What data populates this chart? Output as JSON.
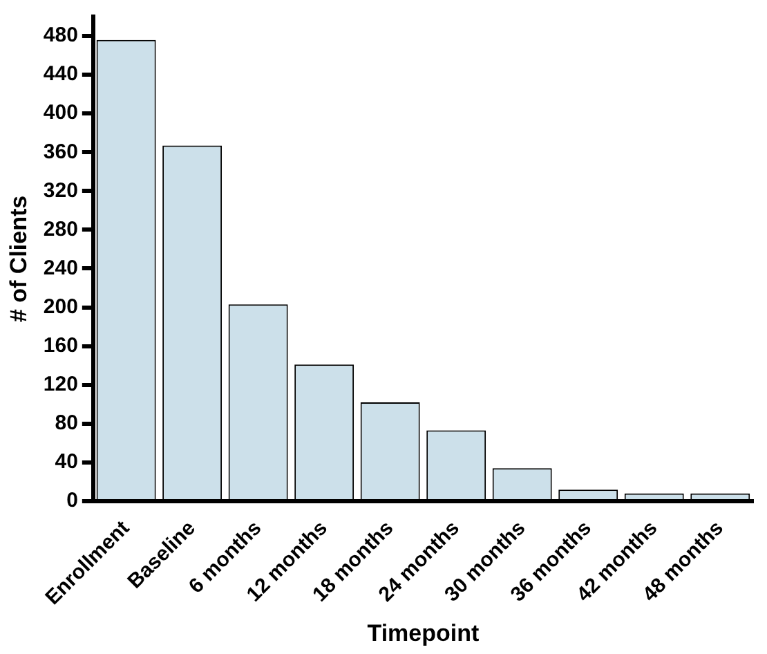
{
  "chart_data": {
    "type": "bar",
    "xlabel": "Timepoint",
    "ylabel": "# of Clients",
    "categories": [
      "Enrollment",
      "Baseline",
      "6 months",
      "12 months",
      "18 months",
      "24 months",
      "30 months",
      "36 months",
      "42 months",
      "48 months"
    ],
    "values": [
      476,
      367,
      203,
      141,
      102,
      73,
      34,
      12,
      8,
      8
    ],
    "color": "#cce0ea",
    "ylim": [
      0,
      500
    ],
    "yticks": [
      0,
      40,
      80,
      120,
      160,
      200,
      240,
      280,
      320,
      360,
      400,
      440,
      480
    ],
    "grid": false,
    "legend": false
  }
}
